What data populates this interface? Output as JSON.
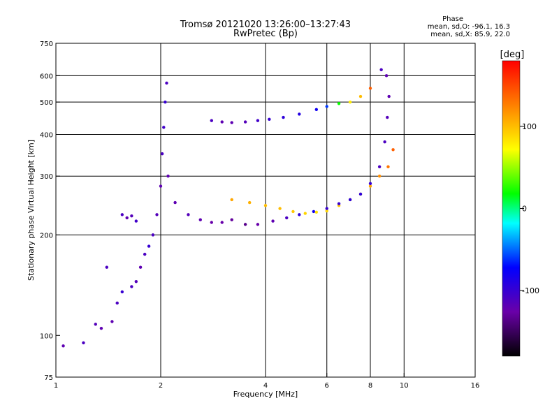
{
  "header": {
    "title": "Tromsø 20121020 13:26:00–13:27:43",
    "subtitle": "RwPretec (Bp)"
  },
  "phase_box": {
    "heading": "Phase",
    "line_o": "mean, sd,O: -96.1, 16.3",
    "line_x": "mean, sd,X: 85.9, 22.0"
  },
  "colorbar": {
    "unit_label": "[deg]",
    "ticks": [
      "100",
      "0",
      "-100"
    ],
    "tick_values": [
      100,
      0,
      -100
    ],
    "range": [
      -180,
      180
    ]
  },
  "chart_data": {
    "type": "scatter",
    "xlabel": "Frequency [MHz]",
    "ylabel": "Stationary phase Virtual Height [km]",
    "xscale": "log",
    "yscale": "log",
    "xlim": [
      1,
      16
    ],
    "ylim": [
      75,
      750
    ],
    "x_ticks": [
      1,
      2,
      4,
      6,
      8,
      10,
      16
    ],
    "x_grid": [
      2,
      4,
      6,
      8,
      10
    ],
    "y_ticks": [
      75,
      100,
      200,
      300,
      400,
      500,
      600,
      750
    ],
    "y_grid": [
      200,
      300,
      400,
      500,
      600
    ],
    "grid": true,
    "series": [
      {
        "points": [
          [
            1.05,
            93,
            -120
          ],
          [
            1.2,
            95,
            -110
          ],
          [
            1.3,
            108,
            -115
          ],
          [
            1.35,
            105,
            -120
          ],
          [
            1.4,
            160,
            -110
          ],
          [
            1.45,
            110,
            -120
          ],
          [
            1.5,
            125,
            -110
          ],
          [
            1.55,
            230,
            -110
          ],
          [
            1.6,
            225,
            -120
          ],
          [
            1.65,
            228,
            -115
          ],
          [
            1.7,
            220,
            -105
          ],
          [
            1.55,
            135,
            -100
          ],
          [
            1.65,
            140,
            -110
          ],
          [
            1.7,
            145,
            -115
          ],
          [
            1.75,
            160,
            -120
          ],
          [
            1.8,
            175,
            -110
          ],
          [
            1.85,
            185,
            -100
          ],
          [
            1.9,
            200,
            -110
          ],
          [
            1.95,
            230,
            -115
          ],
          [
            2.0,
            280,
            -120
          ],
          [
            2.02,
            350,
            -110
          ],
          [
            2.04,
            420,
            -105
          ],
          [
            2.06,
            500,
            -100
          ],
          [
            2.08,
            570,
            -110
          ],
          [
            2.1,
            300,
            -120
          ],
          [
            2.2,
            250,
            -120
          ],
          [
            2.4,
            230,
            -115
          ],
          [
            2.6,
            222,
            -120
          ],
          [
            2.8,
            218,
            -125
          ],
          [
            3.0,
            218,
            -125
          ],
          [
            3.2,
            222,
            -130
          ],
          [
            3.5,
            215,
            -135
          ],
          [
            3.8,
            215,
            -125
          ],
          [
            4.2,
            220,
            -120
          ],
          [
            4.6,
            225,
            -110
          ],
          [
            5.0,
            230,
            -95
          ],
          [
            5.5,
            235,
            -80
          ]
        ]
      },
      {
        "points": [
          [
            2.8,
            440,
            -110
          ],
          [
            3.0,
            436,
            -120
          ],
          [
            3.2,
            434,
            -120
          ],
          [
            3.5,
            436,
            -115
          ],
          [
            3.8,
            440,
            -105
          ],
          [
            4.1,
            444,
            -100
          ],
          [
            4.5,
            450,
            -95
          ],
          [
            5.0,
            460,
            -90
          ],
          [
            5.6,
            475,
            -80
          ],
          [
            6.0,
            485,
            -60
          ],
          [
            6.5,
            495,
            20
          ],
          [
            7.0,
            500,
            80
          ],
          [
            7.5,
            520,
            100
          ],
          [
            8.0,
            550,
            140
          ]
        ]
      },
      {
        "points": [
          [
            3.2,
            255,
            110
          ],
          [
            3.6,
            250,
            105
          ],
          [
            4.0,
            245,
            100
          ],
          [
            4.4,
            240,
            100
          ],
          [
            4.8,
            235,
            95
          ],
          [
            5.2,
            232,
            90
          ],
          [
            5.6,
            234,
            85
          ],
          [
            6.0,
            236,
            90
          ],
          [
            6.5,
            245,
            95
          ],
          [
            7.0,
            255,
            90
          ],
          [
            7.5,
            265,
            100
          ],
          [
            8.0,
            280,
            110
          ],
          [
            8.5,
            300,
            120
          ],
          [
            9.0,
            320,
            130
          ],
          [
            9.3,
            360,
            140
          ]
        ]
      },
      {
        "points": [
          [
            6.0,
            240,
            -100
          ],
          [
            6.5,
            248,
            -100
          ],
          [
            7.0,
            255,
            -95
          ],
          [
            7.5,
            265,
            -95
          ],
          [
            8.0,
            285,
            -100
          ],
          [
            8.5,
            320,
            -110
          ],
          [
            8.8,
            380,
            -110
          ],
          [
            8.95,
            450,
            -115
          ],
          [
            9.05,
            520,
            -120
          ],
          [
            8.9,
            600,
            -120
          ],
          [
            8.6,
            625,
            -110
          ]
        ]
      }
    ]
  }
}
